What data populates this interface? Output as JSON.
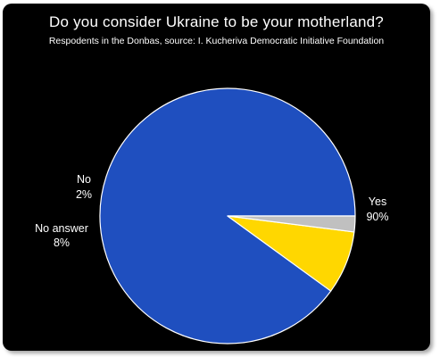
{
  "chart_data": {
    "type": "pie",
    "title": "Do you consider Ukraine to be your motherland?",
    "subtitle": "Respodents in the Donbas, source: I. Kucheriva Democratic Initiative Foundation",
    "slices": [
      {
        "name": "Yes",
        "value": 90,
        "label": "90%",
        "color": "#1f4fbf"
      },
      {
        "name": "No answer",
        "value": 8,
        "label": "8%",
        "color": "#ffd700"
      },
      {
        "name": "No",
        "value": 2,
        "label": "2%",
        "color": "#c0c0c0"
      }
    ],
    "background": "#000000",
    "slice_border_color": "#ffffff"
  }
}
